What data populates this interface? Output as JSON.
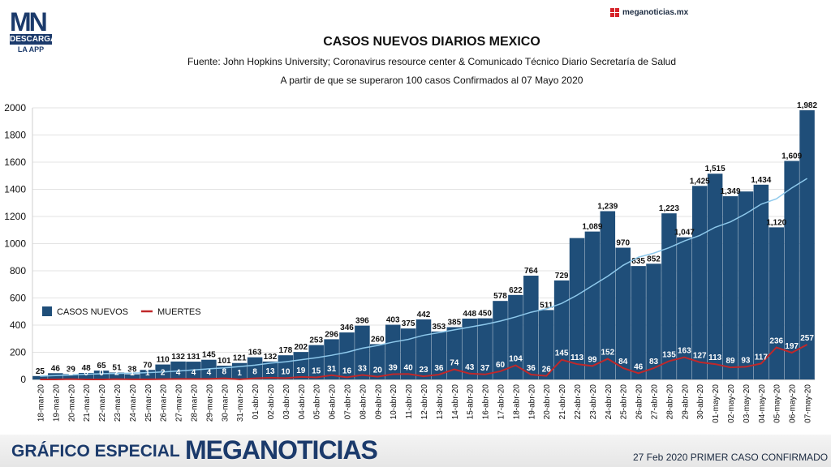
{
  "brand": {
    "logo_mn": "MN",
    "logo_descarga": "DESCARGA",
    "logo_app": "LA APP",
    "site": "meganoticias.mx",
    "bottom_left": "GRÁFICO ESPECIAL",
    "bottom_brand": "MEGANOTICIAS",
    "footnote": "27 Feb 2020 PRIMER CASO CONFIRMADO"
  },
  "chart_data": {
    "type": "bar",
    "title": "CASOS NUEVOS DIARIOS MEXICO",
    "subtitle": "Fuente: John Hopkins University; Coronavirus resource center & Comunicado Técnico Diario Secretaría de Salud",
    "subtitle2": "A partir de que se superaron 100 casos Confirmados al 07 Mayo 2020",
    "ylim": [
      0,
      2000
    ],
    "yticks": [
      0,
      200,
      400,
      600,
      800,
      1000,
      1200,
      1400,
      1600,
      1800,
      2000
    ],
    "legend_position": "left",
    "categories": [
      "18-mar-20",
      "19-mar-20",
      "20-mar-20",
      "21-mar-20",
      "22-mar-20",
      "23-mar-20",
      "24-mar-20",
      "25-mar-20",
      "26-mar-20",
      "27-mar-20",
      "28-mar-20",
      "29-mar-20",
      "30-mar-20",
      "31-mar-20",
      "01-abr-20",
      "02-abr-20",
      "03-abr-20",
      "04-abr-20",
      "05-abr-20",
      "06-abr-20",
      "07-abr-20",
      "08-abr-20",
      "09-abr-20",
      "10-abr-20",
      "11-abr-20",
      "12-abr-20",
      "13-abr-20",
      "14-abr-20",
      "15-abr-20",
      "16-abr-20",
      "17-abr-20",
      "18-abr-20",
      "19-abr-20",
      "20-abr-20",
      "21-abr-20",
      "22-abr-20",
      "23-abr-20",
      "24-abr-20",
      "25-abr-20",
      "26-abr-20",
      "27-abr-20",
      "28-abr-20",
      "29-abr-20",
      "30-abr-20",
      "01-may-20",
      "02-may-20",
      "03-may-20",
      "04-may-20",
      "05-may-20",
      "06-may-20",
      "07-may-20"
    ],
    "series": [
      {
        "name": "CASOS NUEVOS",
        "kind": "bar",
        "color": "#1f4e79",
        "values": [
          25,
          46,
          39,
          48,
          65,
          51,
          38,
          70,
          110,
          132,
          131,
          145,
          101,
          121,
          163,
          132,
          178,
          202,
          253,
          296,
          346,
          396,
          260,
          403,
          375,
          442,
          353,
          385,
          448,
          450,
          578,
          622,
          764,
          511,
          729,
          1041,
          1089,
          1239,
          970,
          835,
          852,
          1223,
          1047,
          1425,
          1515,
          1349,
          1384,
          1434,
          1120,
          1609,
          1982
        ],
        "labels": [
          "25",
          "46",
          "39",
          "48",
          "65",
          "51",
          "38",
          "70",
          "110",
          "132",
          "131",
          "145",
          "101",
          "121",
          "163",
          "132",
          "178",
          "202",
          "253",
          "296",
          "346",
          "396",
          "260",
          "403",
          "375",
          "442",
          "353",
          "385",
          "448",
          "450",
          "578",
          "622",
          "764",
          "511",
          "729",
          "",
          "1,089",
          "1,239",
          "970",
          "835",
          "852",
          "1,223",
          "1,047",
          "1,425",
          "1,515",
          "1,349",
          "",
          "1,434",
          "1,120",
          "1,609",
          "1,982"
        ]
      },
      {
        "name": "MUERTES",
        "kind": "line",
        "color": "#c0282a",
        "values": [
          0,
          0,
          2,
          0,
          0,
          2,
          1,
          1,
          2,
          4,
          4,
          4,
          8,
          1,
          8,
          13,
          10,
          19,
          15,
          31,
          16,
          33,
          20,
          39,
          40,
          23,
          36,
          74,
          43,
          37,
          60,
          104,
          36,
          26,
          145,
          113,
          99,
          152,
          84,
          46,
          83,
          135,
          163,
          127,
          113,
          89,
          93,
          117,
          236,
          197,
          257
        ],
        "labels": [
          "",
          "",
          "2",
          "0",
          "0",
          "2",
          "1",
          "1",
          "2",
          "4",
          "4",
          "4",
          "8",
          "1",
          "8",
          "13",
          "10",
          "19",
          "15",
          "31",
          "16",
          "33",
          "20",
          "39",
          "40",
          "23",
          "36",
          "74",
          "43",
          "37",
          "60",
          "104",
          "36",
          "26",
          "145",
          "113",
          "99",
          "152",
          "84",
          "46",
          "83",
          "135",
          "163",
          "127",
          "113",
          "89",
          "93",
          "117",
          "236",
          "197",
          "257"
        ]
      },
      {
        "kind": "line",
        "color": "#8ec9ec",
        "values": [
          24,
          28,
          33,
          38,
          42,
          44,
          46,
          50,
          55,
          62,
          70,
          78,
          85,
          95,
          105,
          120,
          130,
          145,
          160,
          178,
          200,
          230,
          250,
          275,
          295,
          325,
          345,
          365,
          385,
          405,
          430,
          460,
          495,
          520,
          560,
          620,
          690,
          760,
          840,
          900,
          930,
          970,
          1020,
          1060,
          1120,
          1160,
          1220,
          1290,
          1330,
          1410,
          1480
        ]
      }
    ]
  }
}
